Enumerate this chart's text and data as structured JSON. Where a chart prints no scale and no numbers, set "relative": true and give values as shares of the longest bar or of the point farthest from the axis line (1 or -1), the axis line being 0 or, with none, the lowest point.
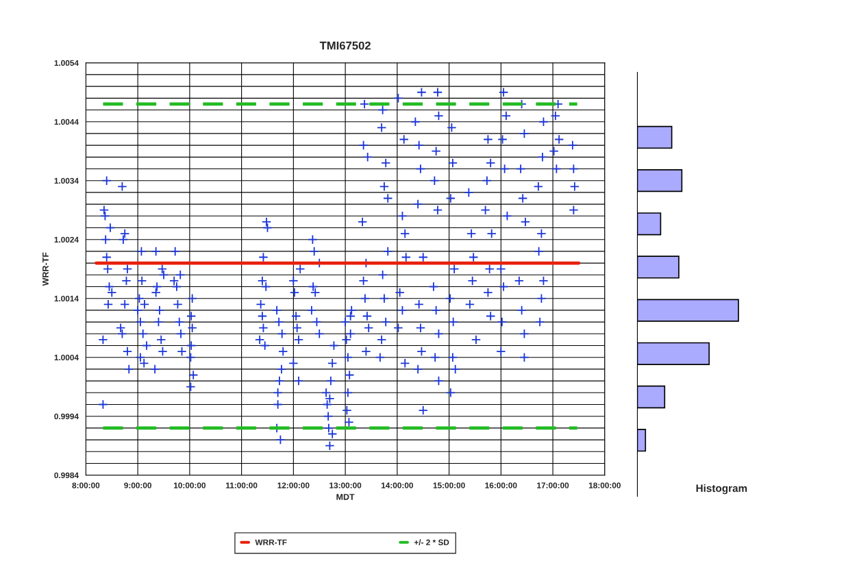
{
  "chart_data": [
    {
      "type": "scatter",
      "title": "TMI67502",
      "xlabel": "MDT",
      "ylabel": "WRR-TF",
      "xlim": [
        8,
        18
      ],
      "xticks": [
        {
          "value": 8,
          "label": "8:00:00"
        },
        {
          "value": 9,
          "label": "9:00:00"
        },
        {
          "value": 10,
          "label": "10:00:00"
        },
        {
          "value": 11,
          "label": "11:00:00"
        },
        {
          "value": 12,
          "label": "12:00:00"
        },
        {
          "value": 13,
          "label": "13:00:00"
        },
        {
          "value": 14,
          "label": "14:00:00"
        },
        {
          "value": 15,
          "label": "15:00:00"
        },
        {
          "value": 16,
          "label": "16:00:00"
        },
        {
          "value": 17,
          "label": "17:00:00"
        },
        {
          "value": 18,
          "label": "18:00:00"
        }
      ],
      "ylim": [
        0.9984,
        1.0054
      ],
      "yticks": [
        0.9984,
        {
          "value": 0.9986,
          "label": null
        },
        {
          "value": 0.9988,
          "label": null
        },
        {
          "value": 0.999,
          "label": null
        },
        {
          "value": 0.9992,
          "label": null
        },
        0.9994,
        {
          "value": 0.9996,
          "label": null
        },
        {
          "value": 0.9998,
          "label": null
        },
        {
          "value": 1.0,
          "label": null
        },
        {
          "value": 1.0002,
          "label": null
        },
        1.0004,
        {
          "value": 1.0006,
          "label": null
        },
        {
          "value": 1.0008,
          "label": null
        },
        {
          "value": 1.001,
          "label": null
        },
        {
          "value": 1.0012,
          "label": null
        },
        1.0014,
        {
          "value": 1.0016,
          "label": null
        },
        {
          "value": 1.0018,
          "label": null
        },
        {
          "value": 1.002,
          "label": null
        },
        {
          "value": 1.0022,
          "label": null
        },
        1.0024,
        {
          "value": 1.0026,
          "label": null
        },
        {
          "value": 1.0028,
          "label": null
        },
        {
          "value": 1.003,
          "label": null
        },
        {
          "value": 1.0032,
          "label": null
        },
        1.0034,
        {
          "value": 1.0036,
          "label": null
        },
        {
          "value": 1.0038,
          "label": null
        },
        {
          "value": 1.004,
          "label": null
        },
        {
          "value": 1.0042,
          "label": null
        },
        1.0044,
        {
          "value": 1.0046,
          "label": null
        },
        {
          "value": 1.0048,
          "label": null
        },
        {
          "value": 1.005,
          "label": null
        },
        {
          "value": 1.0052,
          "label": null
        },
        1.0054
      ],
      "grid": true,
      "legend": "bottom",
      "series": [
        {
          "type": "scatter",
          "color": "#1a35d6",
          "marker": "cross",
          "x": [
            8.33,
            8.33,
            8.35,
            8.37,
            8.4,
            8.38,
            8.4,
            8.42,
            8.45,
            8.43,
            8.47,
            8.5,
            8.7,
            8.72,
            8.75,
            8.78,
            8.67,
            8.7,
            8.75,
            8.8,
            8.83,
            8.8,
            9.0,
            9.03,
            9.05,
            9.05,
            9.07,
            9.08,
            9.1,
            9.12,
            9.13,
            9.17,
            9.35,
            9.37,
            9.35,
            9.4,
            9.42,
            9.33,
            9.45,
            9.48,
            9.5,
            9.47,
            9.72,
            9.7,
            9.75,
            9.77,
            9.8,
            9.85,
            9.82,
            9.83,
            10.05,
            10.03,
            10.05,
            10.03,
            10.02,
            10.02,
            10.07,
            11.4,
            11.42,
            11.48,
            11.5,
            11.37,
            11.35,
            11.42,
            11.45,
            11.47,
            11.4,
            11.68,
            11.72,
            11.68,
            11.75,
            11.7,
            11.7,
            11.73,
            11.77,
            11.8,
            11.78,
            12.0,
            12.02,
            12.05,
            12.07,
            12.1,
            12.0,
            12.1,
            12.13,
            12.37,
            12.4,
            12.38,
            12.42,
            12.35,
            12.45,
            12.5,
            12.5,
            12.63,
            12.65,
            12.67,
            12.68,
            12.7,
            12.75,
            12.72,
            12.75,
            12.78,
            12.7,
            13.0,
            13.02,
            13.05,
            13.08,
            13.05,
            13.07,
            13.03,
            13.1,
            13.12,
            13.1,
            13.37,
            13.35,
            13.43,
            13.33,
            13.4,
            13.35,
            13.38,
            13.42,
            13.45,
            13.4,
            13.72,
            13.7,
            13.78,
            13.75,
            13.82,
            13.82,
            13.72,
            13.75,
            13.78,
            13.7,
            13.67,
            14.02,
            14.13,
            14.1,
            14.15,
            14.17,
            14.05,
            14.1,
            14.02,
            14.15,
            14.47,
            14.35,
            14.42,
            14.45,
            14.4,
            14.5,
            14.42,
            14.45,
            14.47,
            14.4,
            14.5,
            14.78,
            14.8,
            14.75,
            14.72,
            14.78,
            14.7,
            14.75,
            14.8,
            14.73,
            14.8,
            15.05,
            15.07,
            15.03,
            15.1,
            15.02,
            15.08,
            15.07,
            15.03,
            15.12,
            15.38,
            15.43,
            15.47,
            15.45,
            15.4,
            15.52,
            15.75,
            15.8,
            15.73,
            15.7,
            15.82,
            15.78,
            15.75,
            15.8,
            16.05,
            16.1,
            16.03,
            16.07,
            16.12,
            16.0,
            16.05,
            16.02,
            16.0,
            16.4,
            16.45,
            16.38,
            16.42,
            16.47,
            16.35,
            16.4,
            16.45,
            16.45,
            16.82,
            16.8,
            16.72,
            16.78,
            16.73,
            16.82,
            16.78,
            16.75,
            17.1,
            17.05,
            17.12,
            17.02,
            17.07,
            17.38,
            17.4,
            17.42,
            17.4
          ],
          "values": [
            0.9996,
            1.0007,
            1.0029,
            1.0028,
            1.0034,
            1.0024,
            1.0021,
            1.0019,
            1.0016,
            1.0013,
            1.0026,
            1.0015,
            1.0033,
            1.0024,
            1.0025,
            1.0017,
            1.0009,
            1.0008,
            1.0013,
            1.0005,
            1.0002,
            1.0019,
            1.0012,
            1.0014,
            1.001,
            1.0004,
            1.0022,
            1.0017,
            1.0008,
            1.0003,
            1.0013,
            1.0006,
            1.0015,
            1.0016,
            1.0022,
            1.001,
            1.0012,
            1.0002,
            1.0007,
            1.0005,
            1.0018,
            1.0019,
            1.0022,
            1.0017,
            1.0016,
            1.0013,
            1.001,
            1.0005,
            1.0018,
            1.0008,
            1.0014,
            1.0011,
            1.0009,
            1.0006,
            1.0004,
            0.9999,
            1.0001,
            1.0017,
            1.0021,
            1.0027,
            1.0026,
            1.0013,
            1.0007,
            1.0009,
            1.0006,
            1.0016,
            1.0011,
            1.0012,
            1.001,
            0.9992,
            0.999,
            0.9996,
            0.9998,
            1.0,
            1.0002,
            1.0005,
            1.0008,
            1.0017,
            1.0015,
            1.0011,
            1.0009,
            1.0007,
            1.0003,
            1.0,
            1.0019,
            1.0024,
            1.0022,
            1.0016,
            1.0015,
            1.0012,
            1.001,
            1.002,
            1.0008,
            0.9998,
            0.9996,
            0.9994,
            0.9992,
            0.9989,
            0.9991,
            1.0,
            1.0003,
            1.0006,
            0.9997,
            1.001,
            1.0007,
            1.0004,
            1.0001,
            0.9998,
            0.9993,
            0.9995,
            1.0011,
            1.0012,
            1.0008,
            1.0047,
            1.004,
            1.0038,
            1.0027,
            1.002,
            1.0017,
            1.0014,
            1.0011,
            1.0009,
            1.0005,
            1.0046,
            1.0043,
            1.0037,
            1.0033,
            1.0031,
            1.0022,
            1.0018,
            1.0014,
            1.001,
            1.0007,
            1.0004,
            1.0048,
            1.0041,
            1.0028,
            1.0025,
            1.0021,
            1.0015,
            1.0012,
            1.0009,
            1.0003,
            1.0049,
            1.0044,
            1.004,
            1.0036,
            1.003,
            1.0021,
            1.0013,
            1.0009,
            1.0005,
            1.0002,
            0.9995,
            1.0049,
            1.0045,
            1.0039,
            1.0034,
            1.0029,
            1.0016,
            1.0012,
            1.0008,
            1.0004,
            1.0,
            1.0043,
            1.0037,
            1.0031,
            1.0019,
            1.0014,
            1.001,
            1.0004,
            0.9998,
            1.0002,
            1.0032,
            1.0025,
            1.0021,
            1.0017,
            1.0013,
            1.0007,
            1.0041,
            1.0037,
            1.0034,
            1.0029,
            1.0025,
            1.0019,
            1.0015,
            1.0011,
            1.0049,
            1.0045,
            1.0041,
            1.0036,
            1.0028,
            1.0019,
            1.0016,
            1.001,
            1.0005,
            1.0047,
            1.0042,
            1.0036,
            1.0031,
            1.0027,
            1.0017,
            1.0012,
            1.0008,
            1.0004,
            1.0044,
            1.0038,
            1.0033,
            1.0025,
            1.0022,
            1.0017,
            1.0014,
            1.001,
            1.0047,
            1.0045,
            1.0041,
            1.0039,
            1.0036,
            1.004,
            1.0036,
            1.0033,
            1.0029
          ]
        },
        {
          "type": "line",
          "name": "WRR-TF",
          "color": "#e8200c",
          "line_style": "solid",
          "x": [
            8.2,
            17.5
          ],
          "values": [
            1.002,
            1.002
          ]
        },
        {
          "type": "line",
          "name": "+/- 2 * SD",
          "color": "#22bb22",
          "line_style": "dashed",
          "x": [
            8.33,
            17.47
          ],
          "values": [
            1.0047,
            1.0047
          ]
        },
        {
          "type": "line",
          "color": "#22bb22",
          "line_style": "dashed",
          "x": [
            8.33,
            17.47
          ],
          "values": [
            0.9992,
            0.9992
          ]
        }
      ]
    },
    {
      "type": "bar",
      "orientation": "horizontal",
      "relative": true,
      "xlabel": "Histogram",
      "categories": [
        null,
        null,
        null,
        null,
        null,
        null,
        null,
        null
      ],
      "values": [
        0.34,
        0.44,
        0.23,
        0.41,
        1,
        0.71,
        0.27,
        0.08
      ],
      "color": "#aaaaff"
    }
  ]
}
